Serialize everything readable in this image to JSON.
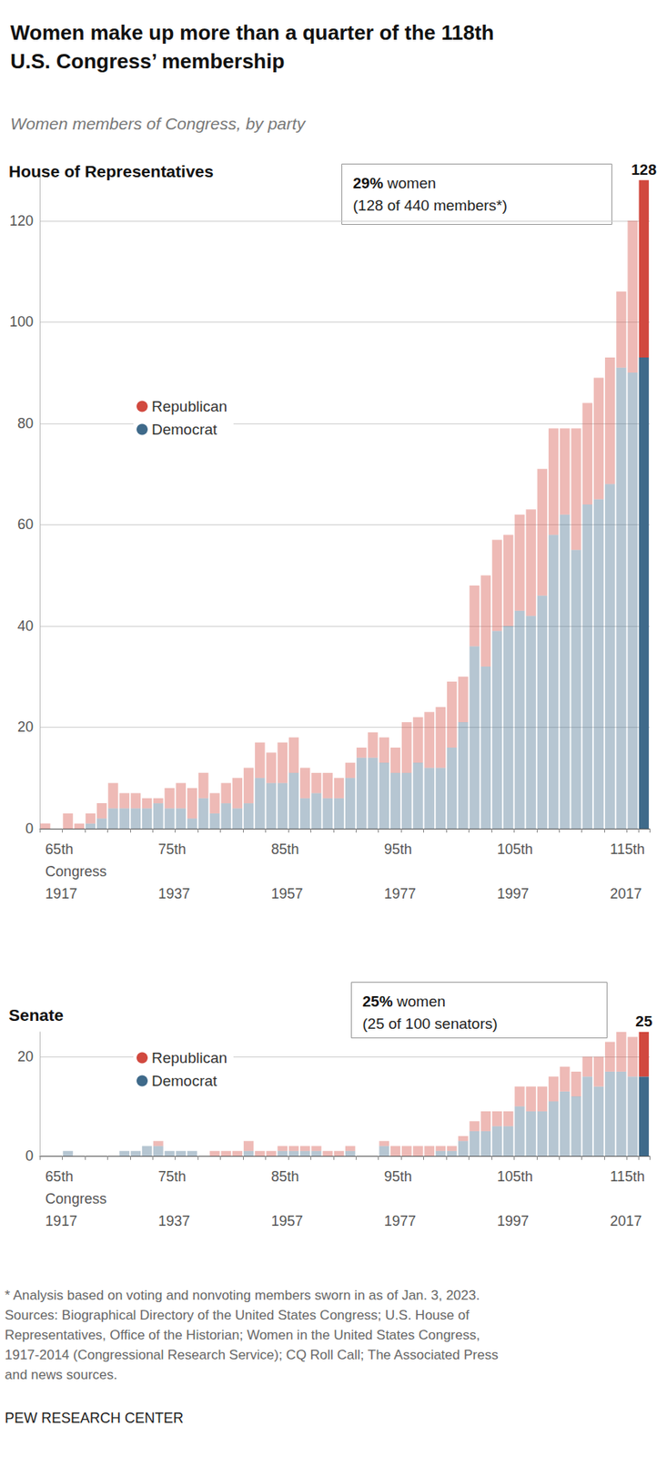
{
  "title": "Women make up more than a quarter of the 118th\nU.S. Congress’ membership",
  "subtitle": "Women members of Congress, by party",
  "note": "* Analysis based on voting and nonvoting members sworn in as of Jan. 3, 2023.\nSources: Biographical Directory of the United States Congress; U.S. House of\nRepresentatives, Office of the Historian; Women in the United States Congress,\n1917-2014 (Congressional Research Service); CQ Roll Call; The Associated Press\nand news sources.",
  "credit": "PEW RESEARCH CENTER",
  "chart_data": [
    {
      "type": "bar",
      "title": "House of Representatives",
      "stacked": true,
      "grid": true,
      "legend": "left",
      "categories": [
        "65th\nCongress\n1917",
        null,
        null,
        null,
        null,
        null,
        null,
        null,
        null,
        null,
        "75th\n\n1937",
        null,
        null,
        null,
        null,
        null,
        null,
        null,
        null,
        null,
        "85th\n\n1957",
        null,
        null,
        null,
        null,
        null,
        null,
        null,
        null,
        null,
        "95th\n\n1977",
        null,
        null,
        null,
        null,
        null,
        null,
        null,
        null,
        null,
        "105th\n\n1997",
        null,
        null,
        null,
        null,
        null,
        null,
        null,
        null,
        null,
        "115th\n\n2017",
        null,
        null,
        null
      ],
      "series": [
        {
          "name": "Republican",
          "color": "#d1493f",
          "values": [
            1,
            0,
            3,
            1,
            2,
            3,
            5,
            3,
            3,
            2,
            1,
            4,
            5,
            6,
            5,
            4,
            4,
            6,
            7,
            7,
            6,
            8,
            7,
            6,
            4,
            5,
            4,
            3,
            2,
            5,
            5,
            5,
            10,
            9,
            11,
            12,
            13,
            9,
            12,
            18,
            18,
            18,
            19,
            21,
            25,
            21,
            17,
            24,
            20,
            24,
            25,
            15,
            30,
            35
          ]
        },
        {
          "name": "Democrat",
          "color": "#3f6a8a",
          "values": [
            0,
            0,
            0,
            0,
            1,
            2,
            4,
            4,
            4,
            4,
            5,
            4,
            4,
            2,
            6,
            3,
            5,
            4,
            5,
            10,
            9,
            9,
            11,
            6,
            7,
            6,
            6,
            10,
            14,
            14,
            13,
            11,
            11,
            13,
            12,
            12,
            16,
            21,
            36,
            32,
            39,
            40,
            43,
            42,
            46,
            58,
            62,
            55,
            64,
            65,
            68,
            91,
            90,
            93
          ]
        }
      ],
      "ylim": [
        0,
        130
      ],
      "yticks": [
        0,
        20,
        40,
        60,
        80,
        100,
        120
      ],
      "annotations": [
        {
          "text": "128"
        },
        {
          "text": "29% women\n(128 of 440 members*)"
        }
      ]
    },
    {
      "type": "bar",
      "title": "Senate",
      "stacked": true,
      "grid": true,
      "legend": "left",
      "categories": [
        "65th\nCongress\n1917",
        null,
        null,
        null,
        null,
        null,
        null,
        null,
        null,
        null,
        "75th\n\n1937",
        null,
        null,
        null,
        null,
        null,
        null,
        null,
        null,
        null,
        "85th\n\n1957",
        null,
        null,
        null,
        null,
        null,
        null,
        null,
        null,
        null,
        "95th\n\n1977",
        null,
        null,
        null,
        null,
        null,
        null,
        null,
        null,
        null,
        "105th\n\n1997",
        null,
        null,
        null,
        null,
        null,
        null,
        null,
        null,
        null,
        "115th\n\n2017",
        null,
        null,
        null
      ],
      "series": [
        {
          "name": "Republican",
          "color": "#d1493f",
          "values": [
            0,
            0,
            0,
            0,
            0,
            0,
            0,
            0,
            0,
            0,
            1,
            0,
            0,
            0,
            0,
            1,
            1,
            1,
            2,
            1,
            1,
            1,
            1,
            1,
            1,
            1,
            1,
            1,
            0,
            0,
            1,
            2,
            2,
            2,
            2,
            1,
            1,
            1,
            2,
            4,
            3,
            3,
            4,
            5,
            5,
            5,
            5,
            5,
            4,
            6,
            6,
            8,
            8,
            9
          ]
        },
        {
          "name": "Democrat",
          "color": "#3f6a8a",
          "values": [
            0,
            0,
            1,
            0,
            0,
            0,
            0,
            1,
            1,
            2,
            2,
            1,
            1,
            1,
            0,
            0,
            0,
            0,
            1,
            0,
            0,
            1,
            1,
            1,
            1,
            0,
            0,
            1,
            0,
            0,
            2,
            0,
            0,
            0,
            0,
            1,
            1,
            3,
            5,
            5,
            6,
            6,
            10,
            9,
            9,
            11,
            13,
            12,
            16,
            14,
            17,
            17,
            16,
            16
          ]
        }
      ],
      "ylim": [
        0,
        25
      ],
      "yticks": [
        0,
        20
      ],
      "annotations": [
        {
          "text": "25"
        },
        {
          "text": "25% women\n(25 of 100 senators)"
        }
      ]
    }
  ]
}
